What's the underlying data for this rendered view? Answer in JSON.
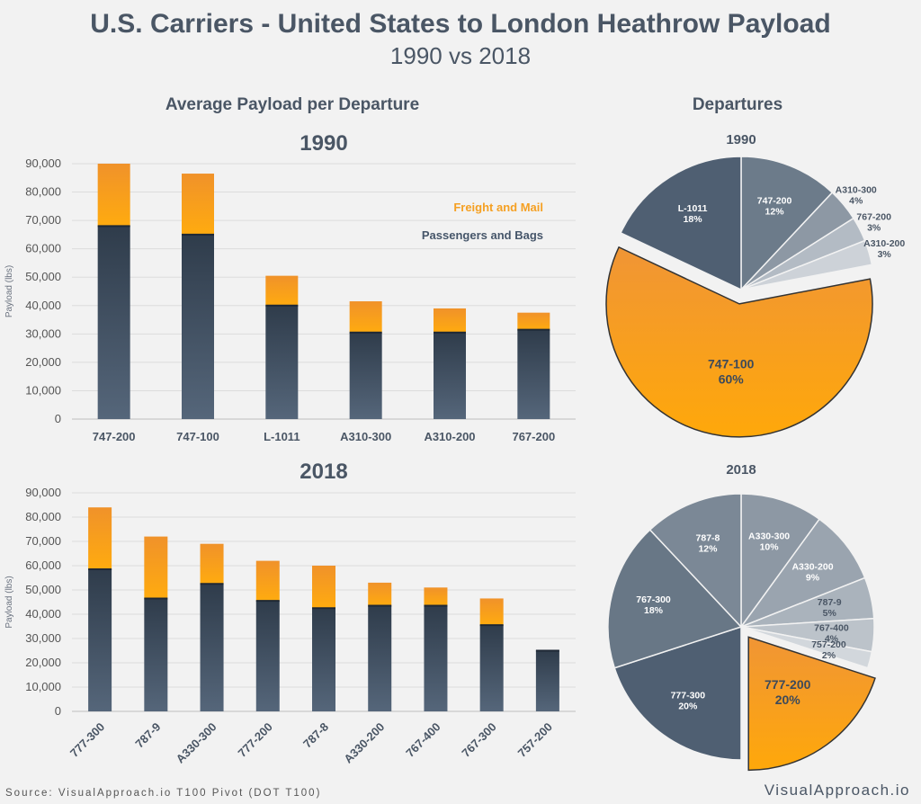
{
  "title": "U.S. Carriers - United States to London Heathrow Payload",
  "subtitle": "1990 vs 2018",
  "left_section_title": "Average Payload per Departure",
  "right_section_title": "Departures",
  "source": "Source: VisualApproach.io T100 Pivot (DOT T100)",
  "brand": "VisualApproach.io",
  "colors": {
    "freight": "#f59c1a",
    "passengers": "#46566a",
    "background": "#f2f2f2",
    "pie_highlight": "#f59c1a"
  },
  "legend": {
    "freight": "Freight and Mail",
    "passengers": "Passengers and Bags"
  },
  "chart_data": [
    {
      "type": "bar",
      "stacked": true,
      "title": "1990",
      "ylabel": "Payload (lbs)",
      "ylim": [
        0,
        90000
      ],
      "yticks": [
        "0",
        "10,000",
        "20,000",
        "30,000",
        "40,000",
        "50,000",
        "60,000",
        "70,000",
        "80,000",
        "90,000"
      ],
      "categories": [
        "747-200",
        "747-100",
        "L-1011",
        "A310-300",
        "A310-200",
        "767-200"
      ],
      "series": [
        {
          "name": "Passengers and Bags",
          "values": [
            68000,
            65000,
            40000,
            30500,
            30500,
            31500
          ]
        },
        {
          "name": "Freight and Mail",
          "values": [
            22000,
            21500,
            10500,
            11000,
            8500,
            6000
          ]
        }
      ],
      "grid": true,
      "legend_position": "top-right"
    },
    {
      "type": "bar",
      "stacked": true,
      "title": "2018",
      "ylabel": "Payload (lbs)",
      "ylim": [
        0,
        90000
      ],
      "yticks": [
        "0",
        "10,000",
        "20,000",
        "30,000",
        "40,000",
        "50,000",
        "60,000",
        "70,000",
        "80,000",
        "90,000"
      ],
      "categories": [
        "777-300",
        "787-9",
        "A330-300",
        "777-200",
        "787-8",
        "A330-200",
        "767-400",
        "767-300",
        "757-200"
      ],
      "series": [
        {
          "name": "Passengers and Bags",
          "values": [
            58500,
            46500,
            52500,
            45500,
            42500,
            43500,
            43500,
            35500,
            25000
          ]
        },
        {
          "name": "Freight and Mail",
          "values": [
            25500,
            25500,
            16500,
            16500,
            17500,
            9500,
            7500,
            11000,
            0
          ]
        }
      ],
      "grid": true
    },
    {
      "type": "pie",
      "title": "1990",
      "slices": [
        {
          "label": "747-200",
          "pct": "12%",
          "value": 12,
          "color": "#6c7b8a"
        },
        {
          "label": "A310-300",
          "pct": "4%",
          "value": 4,
          "color": "#8d98a4"
        },
        {
          "label": "767-200",
          "pct": "3%",
          "value": 3,
          "color": "#b3bbc4"
        },
        {
          "label": "A310-200",
          "pct": "3%",
          "value": 3,
          "color": "#cdd2d8"
        },
        {
          "label": "747-100",
          "pct": "60%",
          "value": 60,
          "color": "#f59c1a",
          "exploded": true
        },
        {
          "label": "L-1011",
          "pct": "18%",
          "value": 18,
          "color": "#4f5f72"
        }
      ]
    },
    {
      "type": "pie",
      "title": "2018",
      "slices": [
        {
          "label": "A330-300",
          "pct": "10%",
          "value": 10,
          "color": "#8d98a4"
        },
        {
          "label": "A330-200",
          "pct": "9%",
          "value": 9,
          "color": "#9aa4af"
        },
        {
          "label": "787-9",
          "pct": "5%",
          "value": 5,
          "color": "#aab3bc"
        },
        {
          "label": "767-400",
          "pct": "4%",
          "value": 4,
          "color": "#bcc3ca"
        },
        {
          "label": "757-200",
          "pct": "2%",
          "value": 2,
          "color": "#d2d7dc"
        },
        {
          "label": "777-200",
          "pct": "20%",
          "value": 20,
          "color": "#f59c1a",
          "exploded": true
        },
        {
          "label": "777-300",
          "pct": "20%",
          "value": 20,
          "color": "#4f5f72"
        },
        {
          "label": "767-300",
          "pct": "18%",
          "value": 18,
          "color": "#687786"
        },
        {
          "label": "787-8",
          "pct": "12%",
          "value": 12,
          "color": "#7b8896"
        }
      ]
    }
  ]
}
